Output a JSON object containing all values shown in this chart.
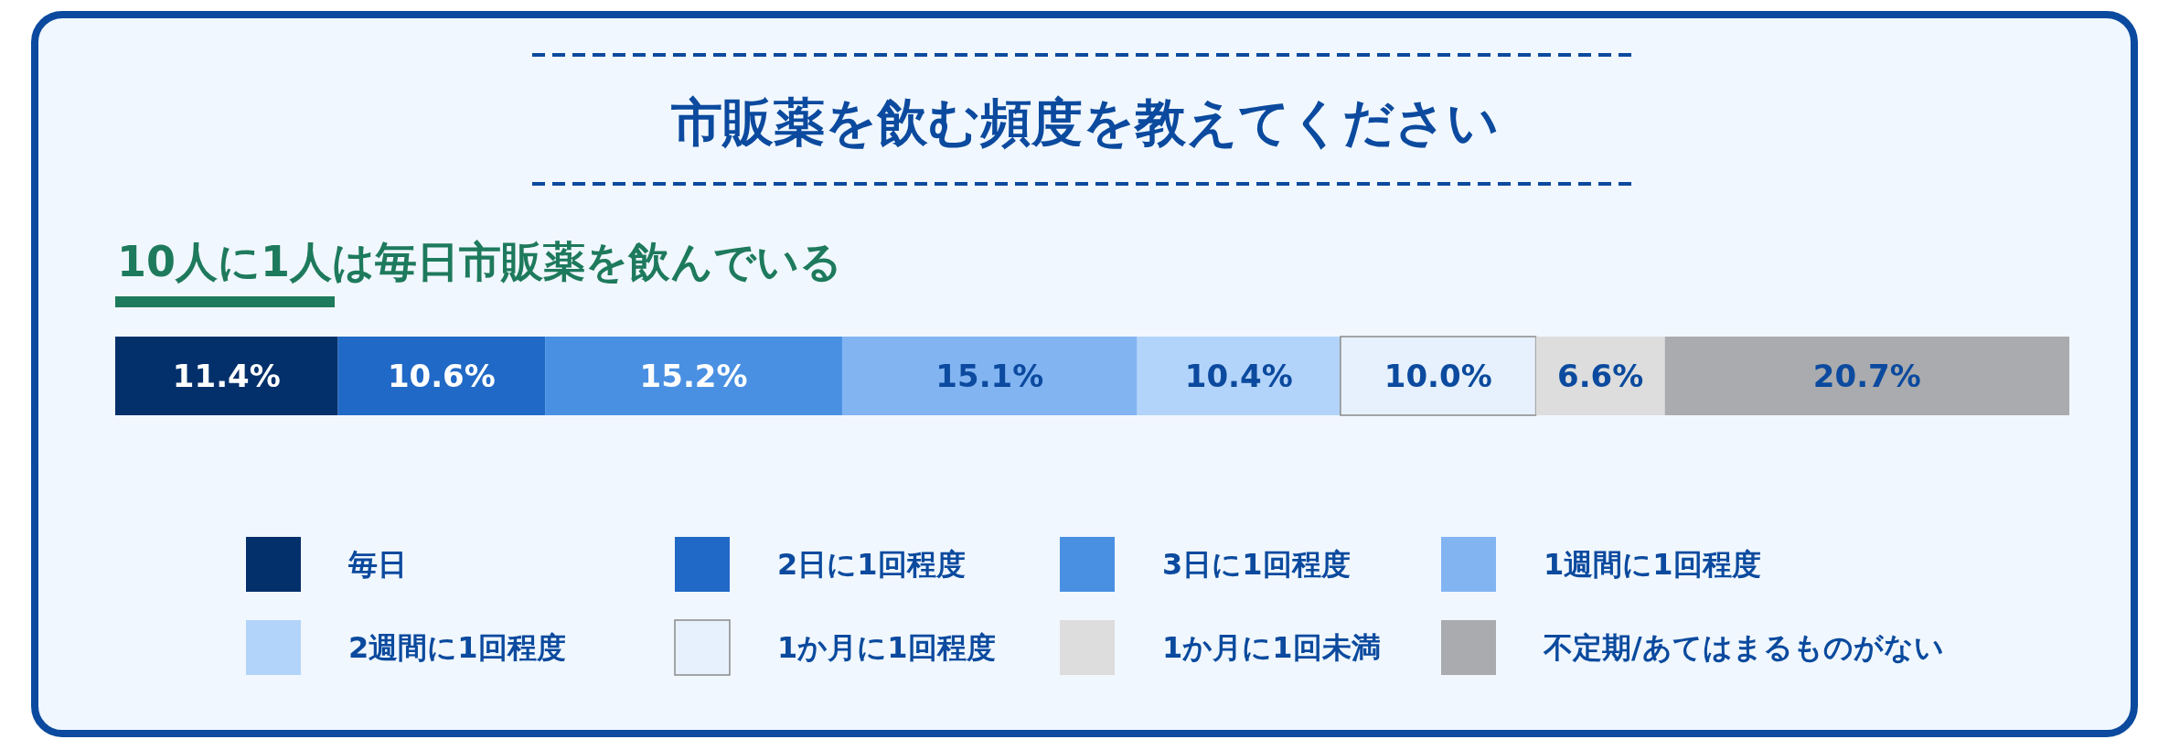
{
  "chart_data": {
    "type": "bar",
    "orientation": "horizontal",
    "stacked": true,
    "title": "市販薬を飲む頻度を教えてください",
    "subtitle": "10人に1人は毎日市販薬を飲んでいる",
    "categories": [
      null
    ],
    "xlim": [
      0,
      100
    ],
    "grid": false,
    "legend": "bottom",
    "series": [
      {
        "name": "毎日",
        "color": "#03306b",
        "values": [
          11.4
        ],
        "value_labels": [
          "11.4%"
        ]
      },
      {
        "name": "2日に1回程度",
        "color": "#2169c6",
        "values": [
          10.6
        ],
        "value_labels": [
          "10.6%"
        ]
      },
      {
        "name": "3日に1回程度",
        "color": "#4a90e2",
        "values": [
          15.2
        ],
        "value_labels": [
          "15.2%"
        ]
      },
      {
        "name": "1週間に1回程度",
        "color": "#82b4f2",
        "values": [
          15.1
        ],
        "value_labels": [
          "15.1%"
        ]
      },
      {
        "name": "2週間に1回程度",
        "color": "#b3d4fa",
        "values": [
          10.4
        ],
        "value_labels": [
          "10.4%"
        ]
      },
      {
        "name": "1か月に1回程度",
        "color": "#e6f1fd",
        "values": [
          10.0
        ],
        "value_labels": [
          "10.0%"
        ]
      },
      {
        "name": "1か月に1回未満",
        "color": "#dddddd",
        "values": [
          6.6
        ],
        "value_labels": [
          "6.6%"
        ]
      },
      {
        "name": "不定期/あてはまるものがない",
        "color": "#aaabae",
        "values": [
          20.7
        ],
        "value_labels": [
          "20.7%"
        ]
      }
    ]
  }
}
